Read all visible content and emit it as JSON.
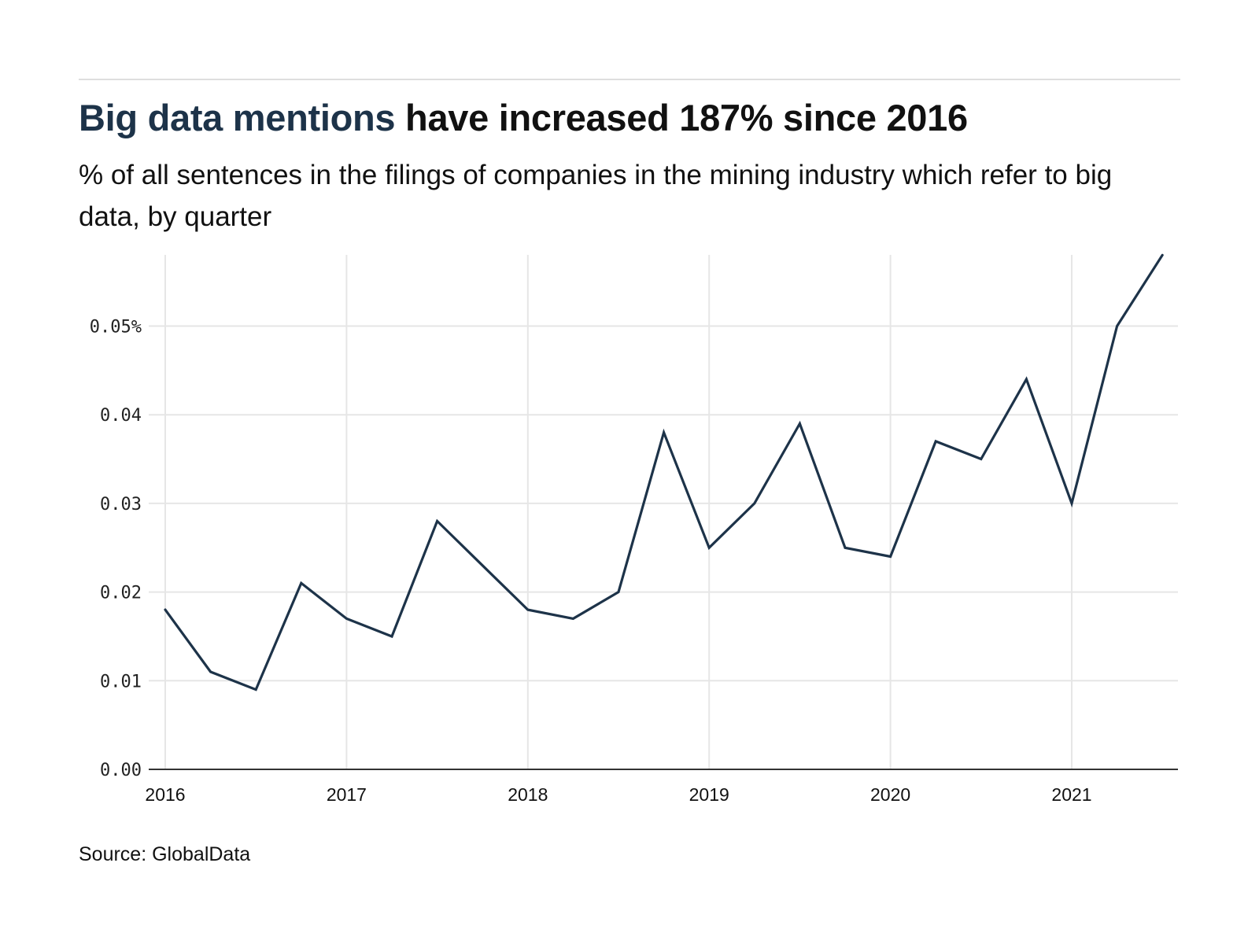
{
  "header": {
    "title_accent": "Big data mentions",
    "title_rest": " have increased 187% since 2016",
    "subtitle": "% of all sentences in the filings of companies in the mining industry which refer to big data, by quarter"
  },
  "footer": {
    "source": "Source: GlobalData"
  },
  "colors": {
    "line": "#1d3349",
    "grid": "#e6e6e6",
    "axis": "#333333",
    "accent_text": "#1d3349"
  },
  "chart_data": {
    "type": "line",
    "title": "Big data mentions have increased 187% since 2016",
    "subtitle": "% of all sentences in the filings of companies in the mining industry which refer to big data, by quarter",
    "xlabel": "",
    "ylabel": "",
    "x": [
      "2016 Q1",
      "2016 Q2",
      "2016 Q3",
      "2016 Q4",
      "2017 Q1",
      "2017 Q2",
      "2017 Q3",
      "2017 Q4",
      "2018 Q1",
      "2018 Q2",
      "2018 Q3",
      "2018 Q4",
      "2019 Q1",
      "2019 Q2",
      "2019 Q3",
      "2019 Q4",
      "2020 Q1",
      "2020 Q2",
      "2020 Q3",
      "2020 Q4",
      "2021 Q1",
      "2021 Q2",
      "2021 Q3"
    ],
    "series": [
      {
        "name": "Big data mentions",
        "values": [
          0.018,
          0.011,
          0.009,
          0.021,
          0.017,
          0.015,
          0.028,
          0.023,
          0.018,
          0.017,
          0.02,
          0.038,
          0.025,
          0.03,
          0.039,
          0.025,
          0.024,
          0.037,
          0.035,
          0.044,
          0.03,
          0.05,
          0.058
        ]
      }
    ],
    "x_ticks": [
      "2016",
      "2017",
      "2018",
      "2019",
      "2020",
      "2021"
    ],
    "y_ticks": [
      {
        "value": 0.0,
        "label": "0.00"
      },
      {
        "value": 0.01,
        "label": "0.01"
      },
      {
        "value": 0.02,
        "label": "0.02"
      },
      {
        "value": 0.03,
        "label": "0.03"
      },
      {
        "value": 0.04,
        "label": "0.04"
      },
      {
        "value": 0.05,
        "label": "0.05%"
      }
    ],
    "ylim": [
      0,
      0.058
    ],
    "xlim_quarters": [
      0,
      22
    ],
    "grid": true,
    "legend": "none",
    "source": "Source: GlobalData"
  }
}
